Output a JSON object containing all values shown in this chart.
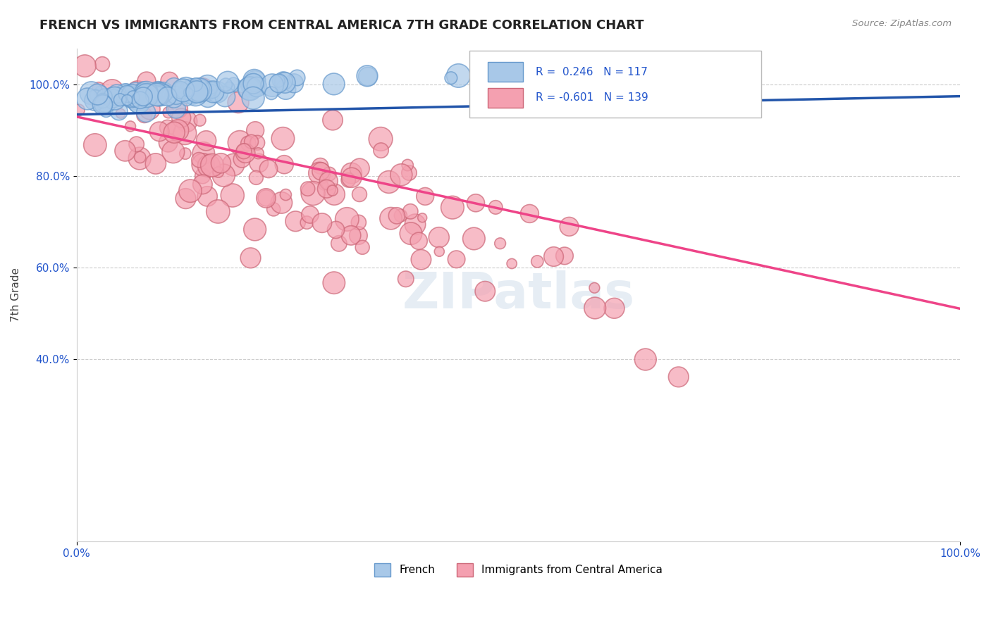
{
  "title": "FRENCH VS IMMIGRANTS FROM CENTRAL AMERICA 7TH GRADE CORRELATION CHART",
  "source": "Source: ZipAtlas.com",
  "xlabel": "",
  "ylabel": "7th Grade",
  "xlim": [
    0.0,
    1.0
  ],
  "ylim": [
    0.0,
    1.0
  ],
  "xtick_labels": [
    "0.0%",
    "100.0%"
  ],
  "ytick_labels": [
    "40.0%",
    "60.0%",
    "80.0%",
    "100.0%"
  ],
  "french_R": 0.246,
  "french_N": 117,
  "immig_R": -0.601,
  "immig_N": 139,
  "french_color": "#a8c8e8",
  "french_edge": "#6699cc",
  "immig_color": "#f4a0b0",
  "immig_edge": "#cc6677",
  "french_line_color": "#2255aa",
  "immig_line_color": "#ee4488",
  "title_fontsize": 13,
  "watermark": "ZIPatlas",
  "background_color": "#ffffff",
  "legend_box_color_french": "#a8c8e8",
  "legend_box_color_immig": "#f4a0b0"
}
